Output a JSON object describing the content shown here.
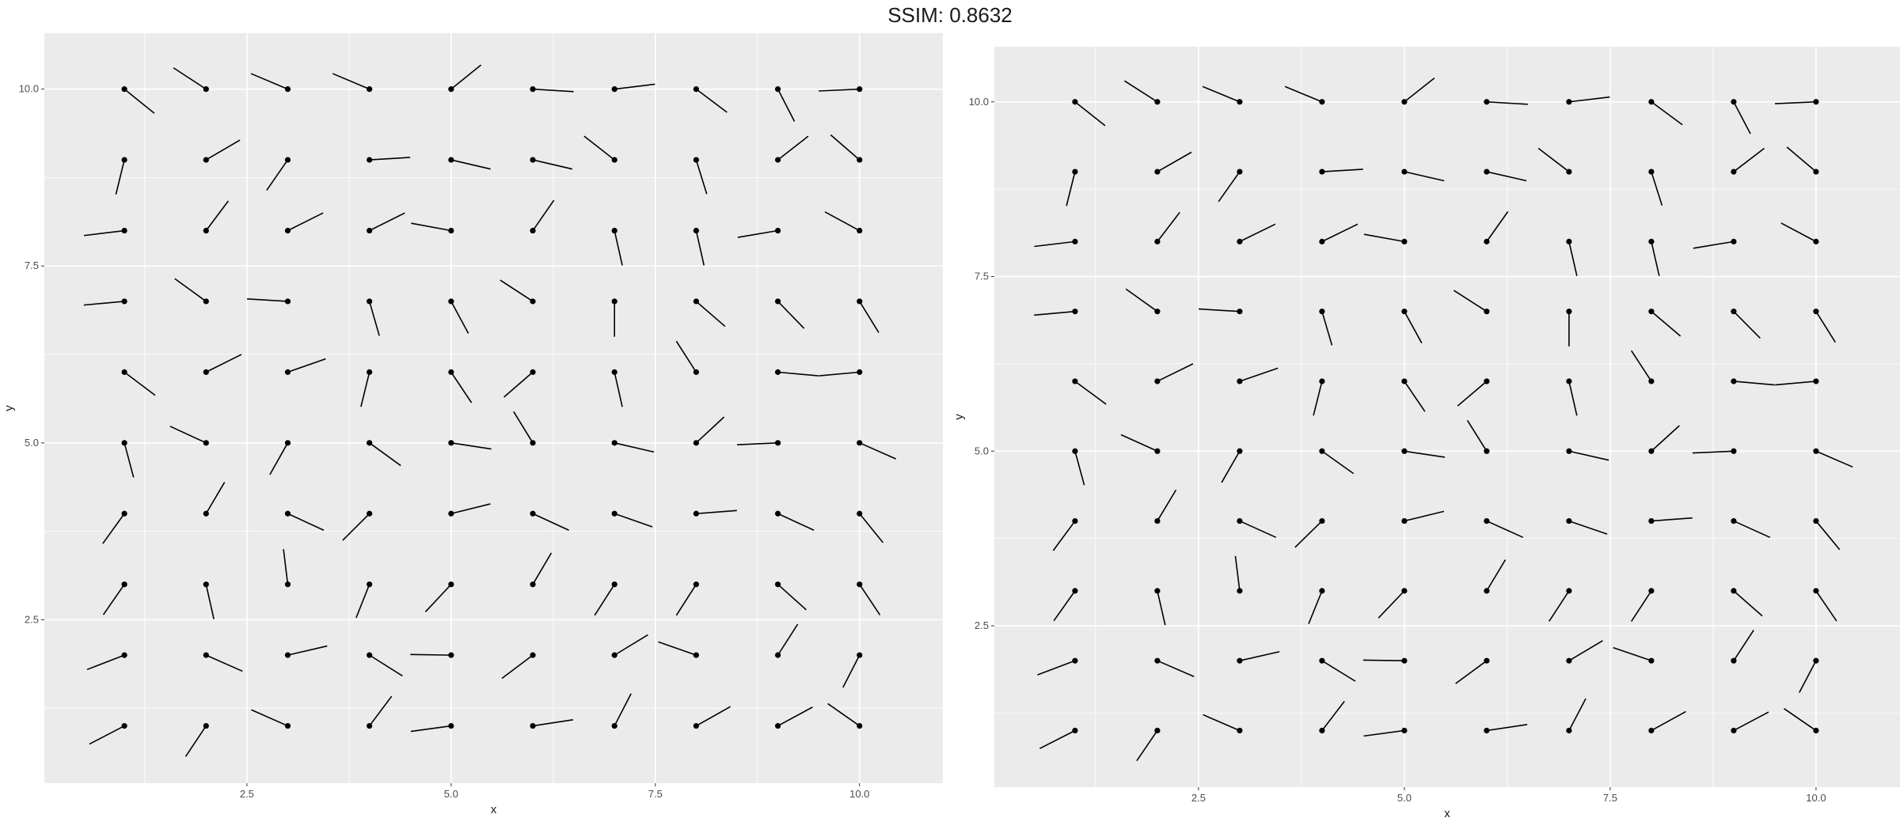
{
  "title": "SSIM: 0.8632",
  "chart_data": [
    {
      "type": "scatter",
      "subtype": "spoke",
      "xlabel": "x",
      "ylabel": "y",
      "xlim": [
        0.02,
        11.02
      ],
      "ylim": [
        0.19,
        10.79
      ],
      "x_ticks": [
        2.5,
        5.0,
        7.5,
        10.0
      ],
      "x_tick_labels": [
        "2.5",
        "5.0",
        "7.5",
        "10.0"
      ],
      "y_ticks": [
        2.5,
        5.0,
        7.5,
        10.0
      ],
      "y_tick_labels": [
        "2.5",
        "5.0",
        "7.5",
        "10.0"
      ],
      "grid": true,
      "panel_background": "#ebebeb",
      "grid_color": "#ffffff",
      "point_color": "#000000",
      "radius": 0.5,
      "grid_x": [
        1,
        2,
        3,
        4,
        5,
        6,
        7,
        8,
        9,
        10
      ],
      "grid_y": [
        1,
        2,
        3,
        4,
        5,
        6,
        7,
        8,
        9,
        10
      ],
      "angles_deg": [
        [
          -149,
          -120,
          153,
          57,
          -171,
          10,
          66,
          33,
          32,
          141
        ],
        [
          -156,
          -27,
          15,
          -36,
          179,
          -139,
          35,
          158,
          61,
          -114
        ],
        [
          -121,
          -79,
          96,
          -109,
          -129,
          63,
          -119,
          -119,
          -46,
          -60
        ],
        [
          -122,
          63,
          -28,
          -131,
          16,
          -28,
          -22,
          5,
          -28,
          -55
        ],
        [
          -77,
          152,
          -116,
          -40,
          -10,
          118,
          -15,
          47,
          -177,
          -27
        ],
        [
          -41,
          30,
          22,
          -102,
          -60,
          -135,
          -79,
          119,
          -6,
          -174
        ],
        [
          -174,
          140,
          176,
          -76,
          -65,
          143,
          -90,
          -45,
          -50,
          -62
        ],
        [
          -172,
          57,
          30,
          30,
          168,
          59,
          -79,
          -79,
          -169,
          148
        ],
        [
          -102,
          34,
          -121,
          4,
          -15,
          -15,
          138,
          -75,
          42,
          135
        ],
        [
          -43,
          143,
          154,
          154,
          43,
          -4,
          8,
          -41,
          -66,
          -177
        ]
      ]
    },
    {
      "type": "scatter",
      "subtype": "spoke",
      "xlabel": "x",
      "ylabel": "y",
      "xlim": [
        0.02,
        11.02
      ],
      "ylim": [
        0.19,
        10.79
      ],
      "x_ticks": [
        2.5,
        5.0,
        7.5,
        10.0
      ],
      "x_tick_labels": [
        "2.5",
        "5.0",
        "7.5",
        "10.0"
      ],
      "y_ticks": [
        2.5,
        5.0,
        7.5,
        10.0
      ],
      "y_tick_labels": [
        "2.5",
        "5.0",
        "7.5",
        "10.0"
      ],
      "grid": true,
      "panel_background": "#ebebeb",
      "grid_color": "#ffffff",
      "point_color": "#000000",
      "radius": 0.5,
      "grid_x": [
        1,
        2,
        3,
        4,
        5,
        6,
        7,
        8,
        9,
        10
      ],
      "grid_y": [
        1,
        2,
        3,
        4,
        5,
        6,
        7,
        8,
        9,
        10
      ],
      "angles_deg": [
        [
          -149,
          -120,
          153,
          57,
          -171,
          10,
          66,
          33,
          32,
          141
        ],
        [
          -156,
          -27,
          15,
          -36,
          179,
          -139,
          35,
          158,
          61,
          -114
        ],
        [
          -121,
          -79,
          96,
          -109,
          -129,
          63,
          -119,
          -119,
          -46,
          -60
        ],
        [
          -122,
          63,
          -28,
          -131,
          16,
          -28,
          -22,
          5,
          -28,
          -55
        ],
        [
          -77,
          152,
          -116,
          -40,
          -10,
          118,
          -15,
          47,
          -177,
          -27
        ],
        [
          -41,
          30,
          22,
          -102,
          -60,
          -135,
          -79,
          119,
          -6,
          -174
        ],
        [
          -174,
          140,
          176,
          -76,
          -65,
          143,
          -90,
          -45,
          -50,
          -62
        ],
        [
          -172,
          57,
          30,
          30,
          168,
          59,
          -79,
          -79,
          -169,
          148
        ],
        [
          -102,
          34,
          -121,
          4,
          -15,
          -15,
          138,
          -75,
          42,
          135
        ],
        [
          -43,
          143,
          154,
          154,
          43,
          -4,
          8,
          -41,
          -66,
          -177
        ]
      ]
    }
  ]
}
